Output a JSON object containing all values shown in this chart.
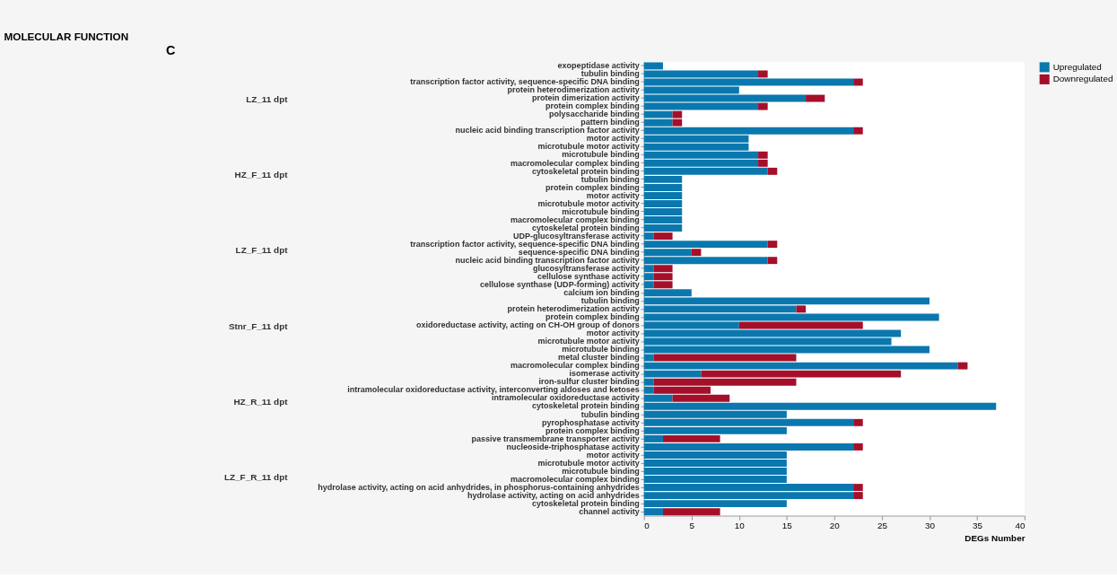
{
  "chart_data": {
    "type": "bar",
    "orientation": "horizontal",
    "stacked": true,
    "title": "MOLECULAR FUNCTION",
    "xlabel": "DEGs Number",
    "categories": [
      "exopeptidase activity",
      "tubulin binding",
      "transcription factor activity, sequence-specific DNA binding",
      "protein heterodimerization activity",
      "protein dimerization activity",
      "protein complex binding",
      "polysaccharide binding",
      "pattern binding",
      "nucleic acid binding transcription factor activity",
      "motor activity",
      "microtubule motor activity",
      "microtubule binding",
      "macromolecular complex binding",
      "cytoskeletal protein binding",
      "tubulin binding",
      "protein complex binding",
      "motor activity",
      "microtubule motor activity",
      "microtubule binding",
      "macromolecular complex binding",
      "cytoskeletal protein binding",
      "UDP-glucosyltransferase activity",
      "transcription factor activity, sequence-specific DNA binding",
      "sequence-specific DNA binding",
      "nucleic acid binding transcription factor activity",
      "glucosyltransferase activity",
      "cellulose synthase activity",
      "cellulose synthase (UDP-forming) activity",
      "calcium ion binding",
      "tubulin binding",
      "protein heterodimerization activity",
      "protein complex binding",
      "oxidoreductase activity, acting on CH-OH group of donors",
      "motor activity",
      "microtubule motor activity",
      "microtubule binding",
      "metal cluster binding",
      "macromolecular complex binding",
      "isomerase activity",
      "iron-sulfur cluster binding",
      "intramolecular oxidoreductase activity, interconverting aldoses and ketoses",
      "intramolecular oxidoreductase activity",
      "cytoskeletal protein binding",
      "tubulin binding",
      "pyrophosphatase activity",
      "protein complex binding",
      "passive transmembrane transporter activity",
      "nucleoside-triphosphatase activity",
      "motor activity",
      "microtubule motor activity",
      "microtubule binding",
      "macromolecular complex binding",
      "hydrolase activity, acting on acid anhydrides, in phosphorus-containing anhydrides",
      "hydrolase activity, acting on acid anhydrides",
      "cytoskeletal protein binding",
      "channel activity"
    ],
    "series": [
      {
        "name": "Upregulated",
        "color": "#0a78ae",
        "values": [
          2,
          12,
          22,
          10,
          17,
          12,
          3,
          3,
          22,
          11,
          11,
          12,
          12,
          13,
          4,
          4,
          4,
          4,
          4,
          4,
          4,
          1,
          13,
          5,
          13,
          1,
          1,
          1,
          5,
          30,
          16,
          31,
          10,
          27,
          26,
          30,
          1,
          33,
          6,
          1,
          1,
          3,
          37,
          15,
          22,
          15,
          2,
          22,
          15,
          15,
          15,
          15,
          22,
          22,
          15,
          2
        ]
      },
      {
        "name": "Downregulated",
        "color": "#a50f2a",
        "values": [
          0,
          1,
          1,
          0,
          2,
          1,
          1,
          1,
          1,
          0,
          0,
          1,
          1,
          1,
          0,
          0,
          0,
          0,
          0,
          0,
          0,
          2,
          1,
          1,
          1,
          2,
          2,
          2,
          0,
          0,
          1,
          0,
          13,
          0,
          0,
          0,
          15,
          1,
          21,
          15,
          6,
          6,
          0,
          0,
          1,
          0,
          6,
          1,
          0,
          0,
          0,
          0,
          1,
          1,
          0,
          6
        ]
      }
    ],
    "xlim": [
      0,
      40
    ],
    "xticks": [
      0,
      5,
      10,
      15,
      20,
      25,
      30,
      35,
      40
    ],
    "legend": "top right",
    "grid": false,
    "annotations": [
      "C",
      "LZ_11 dpt",
      "HZ_F_11 dpt",
      "LZ_F_11 dpt",
      "Stnr_F_11 dpt",
      "HZ_R_11 dpt",
      "LZ_F_R_11 dpt"
    ]
  }
}
